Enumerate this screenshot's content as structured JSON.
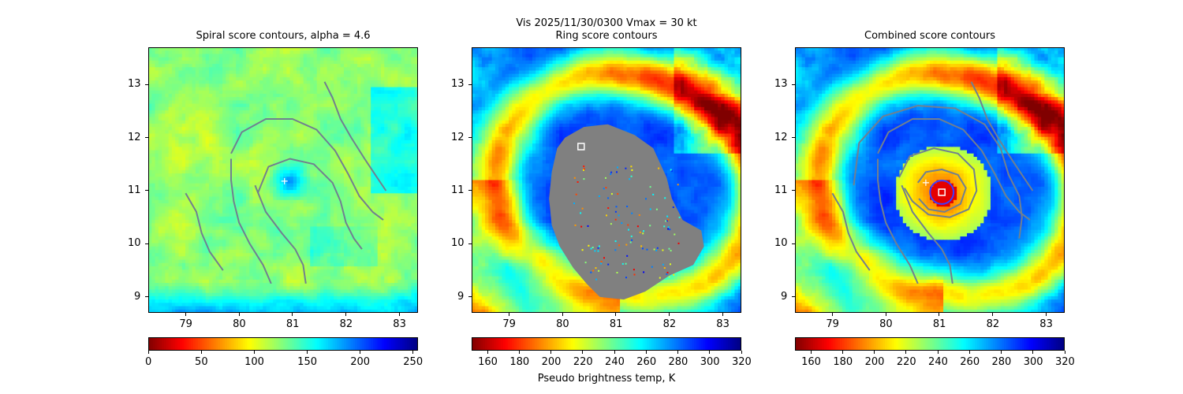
{
  "figure": {
    "suptitle_line": "Vis  2025/11/30/0300    Vmax = 30 kt"
  },
  "colors": {
    "colormap": "jet",
    "colormap_reversed_left_to_right": [
      "#800000",
      "#ff0000",
      "#ff8000",
      "#ffff00",
      "#80ff80",
      "#00ffff",
      "#0080ff",
      "#0000ff",
      "#000080"
    ],
    "contour_line": "#708090",
    "masked_area": "#808080",
    "marker": "#ffffff",
    "ring_circle": "#3d3dff"
  },
  "chart_data": [
    {
      "type": "heatmap",
      "title": "Spiral score contours, alpha =  4.6",
      "xlim": [
        78.3,
        83.35
      ],
      "ylim": [
        8.7,
        13.7
      ],
      "x_ticks": [
        "79",
        "80",
        "81",
        "82",
        "83"
      ],
      "y_ticks": [
        "9",
        "10",
        "11",
        "12",
        "13"
      ],
      "colorbar": {
        "range": [
          0,
          255
        ],
        "ticks": [
          "0",
          "50",
          "100",
          "150",
          "200",
          "250"
        ],
        "label": ""
      },
      "markers": [
        {
          "kind": "plus",
          "x": 80.85,
          "y": 11.18
        }
      ],
      "contours": [
        {
          "name": "spiral-arm-1",
          "points": [
            [
              79.0,
              10.95
            ],
            [
              79.2,
              10.6
            ],
            [
              79.3,
              10.2
            ],
            [
              79.45,
              9.85
            ],
            [
              79.7,
              9.5
            ]
          ]
        },
        {
          "name": "spiral-arm-2",
          "points": [
            [
              79.85,
              11.6
            ],
            [
              79.85,
              11.2
            ],
            [
              79.9,
              10.8
            ],
            [
              80.0,
              10.4
            ],
            [
              80.2,
              10.0
            ],
            [
              80.45,
              9.6
            ],
            [
              80.6,
              9.25
            ]
          ]
        },
        {
          "name": "spiral-arm-3",
          "points": [
            [
              79.85,
              11.7
            ],
            [
              80.05,
              12.1
            ],
            [
              80.5,
              12.35
            ],
            [
              81.0,
              12.35
            ],
            [
              81.45,
              12.15
            ],
            [
              81.8,
              11.75
            ],
            [
              82.05,
              11.3
            ],
            [
              82.25,
              10.9
            ],
            [
              82.5,
              10.6
            ],
            [
              82.7,
              10.45
            ]
          ]
        },
        {
          "name": "spiral-arm-4",
          "points": [
            [
              80.35,
              10.95
            ],
            [
              80.55,
              11.45
            ],
            [
              80.95,
              11.6
            ],
            [
              81.4,
              11.5
            ],
            [
              81.75,
              11.15
            ],
            [
              81.9,
              10.8
            ],
            [
              82.0,
              10.4
            ],
            [
              82.15,
              10.1
            ],
            [
              82.3,
              9.9
            ]
          ]
        },
        {
          "name": "spiral-arm-5",
          "points": [
            [
              80.3,
              11.1
            ],
            [
              80.5,
              10.6
            ],
            [
              80.8,
              10.2
            ],
            [
              81.05,
              9.9
            ],
            [
              81.2,
              9.6
            ],
            [
              81.25,
              9.25
            ]
          ]
        },
        {
          "name": "spiral-arm-6",
          "points": [
            [
              81.6,
              13.05
            ],
            [
              81.75,
              12.75
            ],
            [
              81.9,
              12.35
            ],
            [
              82.1,
              12.0
            ],
            [
              82.35,
              11.6
            ],
            [
              82.55,
              11.3
            ],
            [
              82.75,
              11.0
            ]
          ]
        }
      ]
    },
    {
      "type": "heatmap",
      "title": "Ring score contours",
      "xlim": [
        78.3,
        83.35
      ],
      "ylim": [
        8.7,
        13.7
      ],
      "x_ticks": [
        "79",
        "80",
        "81",
        "82",
        "83"
      ],
      "y_ticks": [
        "9",
        "10",
        "11",
        "12",
        "13"
      ],
      "colorbar": {
        "range": [
          150,
          320
        ],
        "ticks": [
          "160",
          "180",
          "200",
          "220",
          "240",
          "260",
          "280",
          "300",
          "320"
        ],
        "label": "Pseudo brightness temp, K"
      },
      "markers": [
        {
          "kind": "square",
          "x": 80.35,
          "y": 11.83
        }
      ],
      "masked_region": [
        [
          80.05,
          12.0
        ],
        [
          80.4,
          12.2
        ],
        [
          80.85,
          12.25
        ],
        [
          81.35,
          12.05
        ],
        [
          81.7,
          11.8
        ],
        [
          81.95,
          11.25
        ],
        [
          82.05,
          10.85
        ],
        [
          82.25,
          10.45
        ],
        [
          82.6,
          10.25
        ],
        [
          82.65,
          9.95
        ],
        [
          82.45,
          9.6
        ],
        [
          82.0,
          9.4
        ],
        [
          81.55,
          9.1
        ],
        [
          81.15,
          8.95
        ],
        [
          80.7,
          9.0
        ],
        [
          80.45,
          9.25
        ],
        [
          80.2,
          9.55
        ],
        [
          79.95,
          9.95
        ],
        [
          79.8,
          10.35
        ],
        [
          79.75,
          10.85
        ],
        [
          79.8,
          11.35
        ],
        [
          79.9,
          11.8
        ]
      ]
    },
    {
      "type": "heatmap",
      "title": "Combined score contours",
      "xlim": [
        78.3,
        83.35
      ],
      "ylim": [
        8.7,
        13.7
      ],
      "x_ticks": [
        "79",
        "80",
        "81",
        "82",
        "83"
      ],
      "y_ticks": [
        "9",
        "10",
        "11",
        "12",
        "13"
      ],
      "colorbar": {
        "range": [
          150,
          320
        ],
        "ticks": [
          "160",
          "180",
          "200",
          "220",
          "240",
          "260",
          "280",
          "300",
          "320"
        ],
        "label": ""
      },
      "markers": [
        {
          "kind": "square",
          "x": 81.05,
          "y": 10.97
        },
        {
          "kind": "plus",
          "x": 80.75,
          "y": 11.15
        }
      ],
      "rings": [
        {
          "x": 81.05,
          "y": 10.97,
          "r": 0.22
        }
      ],
      "contours": [
        {
          "name": "spiral-arm-1",
          "points": [
            [
              79.0,
              10.95
            ],
            [
              79.2,
              10.6
            ],
            [
              79.3,
              10.2
            ],
            [
              79.45,
              9.85
            ],
            [
              79.7,
              9.5
            ]
          ]
        },
        {
          "name": "spiral-arm-2",
          "points": [
            [
              79.85,
              11.6
            ],
            [
              79.85,
              11.2
            ],
            [
              79.9,
              10.8
            ],
            [
              80.0,
              10.4
            ],
            [
              80.2,
              10.0
            ],
            [
              80.45,
              9.6
            ],
            [
              80.6,
              9.25
            ]
          ]
        },
        {
          "name": "spiral-arm-3",
          "points": [
            [
              79.85,
              11.7
            ],
            [
              80.05,
              12.1
            ],
            [
              80.5,
              12.35
            ],
            [
              81.0,
              12.35
            ],
            [
              81.45,
              12.15
            ],
            [
              81.8,
              11.75
            ],
            [
              82.05,
              11.3
            ],
            [
              82.25,
              10.9
            ],
            [
              82.5,
              10.6
            ],
            [
              82.7,
              10.45
            ]
          ]
        },
        {
          "name": "spiral-arm-5",
          "points": [
            [
              80.3,
              11.1
            ],
            [
              80.5,
              10.6
            ],
            [
              80.8,
              10.2
            ],
            [
              81.05,
              9.9
            ],
            [
              81.2,
              9.6
            ],
            [
              81.25,
              9.25
            ]
          ]
        },
        {
          "name": "spiral-arm-6",
          "points": [
            [
              81.6,
              13.05
            ],
            [
              81.75,
              12.75
            ],
            [
              81.9,
              12.35
            ],
            [
              82.1,
              12.0
            ],
            [
              82.35,
              11.6
            ],
            [
              82.55,
              11.3
            ],
            [
              82.75,
              11.0
            ]
          ]
        },
        {
          "name": "combined-outer-loop",
          "points": [
            [
              79.4,
              11.1
            ],
            [
              79.5,
              11.9
            ],
            [
              79.95,
              12.4
            ],
            [
              80.6,
              12.6
            ],
            [
              81.3,
              12.55
            ],
            [
              81.85,
              12.25
            ],
            [
              82.15,
              11.8
            ],
            [
              82.3,
              11.3
            ],
            [
              82.5,
              10.9
            ],
            [
              82.55,
              10.5
            ],
            [
              82.5,
              10.1
            ]
          ]
        },
        {
          "name": "combined-inner-loop",
          "points": [
            [
              80.25,
              11.25
            ],
            [
              80.45,
              11.65
            ],
            [
              80.9,
              11.8
            ],
            [
              81.35,
              11.7
            ],
            [
              81.65,
              11.4
            ],
            [
              81.7,
              11.0
            ],
            [
              81.55,
              10.65
            ],
            [
              81.2,
              10.5
            ],
            [
              80.8,
              10.55
            ],
            [
              80.5,
              10.8
            ],
            [
              80.35,
              11.05
            ]
          ]
        },
        {
          "name": "combined-core-loop",
          "points": [
            [
              80.6,
              11.15
            ],
            [
              80.75,
              11.35
            ],
            [
              81.05,
              11.4
            ],
            [
              81.35,
              11.3
            ],
            [
              81.5,
              11.05
            ],
            [
              81.4,
              10.75
            ],
            [
              81.1,
              10.6
            ],
            [
              80.8,
              10.65
            ],
            [
              80.62,
              10.85
            ]
          ]
        }
      ]
    }
  ]
}
